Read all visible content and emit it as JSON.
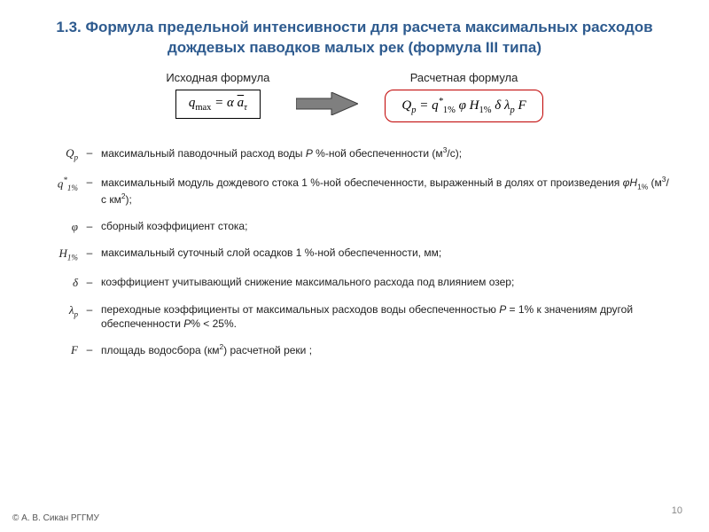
{
  "title": "1.3. Формула предельной интенсивности для расчета максимальных расходов дождевых паводков малых рек (формула III типа)",
  "labels": {
    "source": "Исходная формула",
    "calc": "Расчетная формула"
  },
  "formulas": {
    "source_html": "<i>q</i><sub><span class='upright'>max</span></sub> = <i>α</i> <span class='overbar'><i>a</i></span><sub><i>τ</i></sub>",
    "calc_html": "<i>Q</i><sub><i>p</i></sub> = <i>q</i><sup>*</sup><sub><span class='upright'>1%</span></sub> <i>φ</i> <i>H</i><sub><span class='upright'>1%</span></sub> <i>δ</i> <i>λ</i><sub><i>p</i></sub> <i>F</i>"
  },
  "defs": [
    {
      "sym": "<i>Q<sub>p</sub></i>",
      "text": "максимальный паводочный расход  воды  <i>P</i> %-ной обеспеченности (м<sup>3</sup>/с);"
    },
    {
      "sym": "<i>q</i><sup>*</sup><sub>1%</sub>",
      "text": "максимальный модуль дождевого стока  1 %-ной обеспеченности, выраженный в долях от произведения  <i>φH</i><sub>1%</sub>  (м<sup>3</sup>/с км<sup>2</sup>);"
    },
    {
      "sym": "<i>φ</i>",
      "text": "сборный коэффициент стока;"
    },
    {
      "sym": "<i>H</i><sub>1%</sub>",
      "text": "максимальный суточный слой осадков 1 %-ной обеспеченности, мм;"
    },
    {
      "sym": "<i>δ</i>",
      "text": "коэффициент учитывающий снижение  максимального расхода под влиянием озер;"
    },
    {
      "sym": "<i>λ<sub>p</sub></i>",
      "text": "переходные коэффициенты от максимальных  расходов воды обеспеченностью  <i>P</i> = 1% к значениям   другой  обеспеченности  <i>P</i>% &lt; 25%."
    },
    {
      "sym": "<i>F</i>",
      "text": "площадь водосбора (км<sup>2</sup>) расчетной реки ;"
    }
  ],
  "footer": {
    "author": "© А. В. Сикан РГГМУ",
    "page": "10"
  },
  "colors": {
    "title": "#2e5b8f",
    "result_border": "#c00000",
    "arrow_fill": "#7f7f7f",
    "arrow_stroke": "#3b3b3b"
  }
}
